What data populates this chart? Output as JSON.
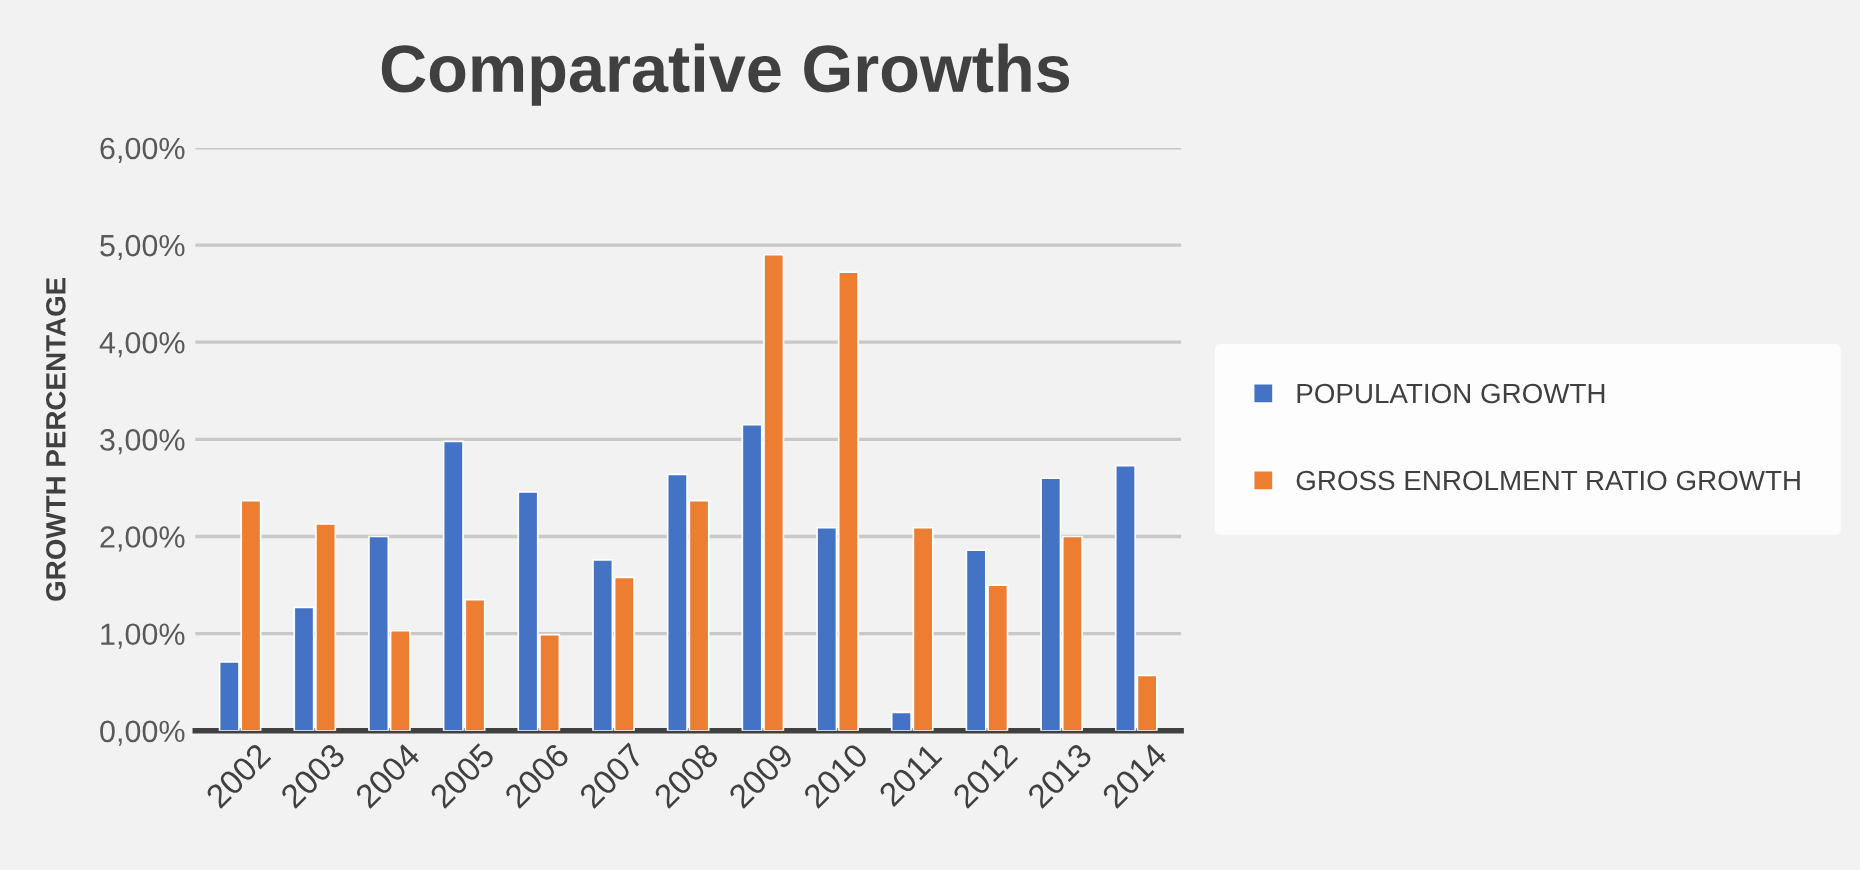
{
  "chart_data": {
    "type": "bar",
    "title": "Comparative Growths",
    "ylabel": "GROWTH PERCENTAGE",
    "categories": [
      "2002",
      "2003",
      "2004",
      "2005",
      "2006",
      "2007",
      "2008",
      "2009",
      "2010",
      "2011",
      "2012",
      "2013",
      "2014"
    ],
    "series": [
      {
        "name": "POPULATION GROWTH",
        "color": "#4472c4",
        "values": [
          0.71,
          1.27,
          2.0,
          2.98,
          2.46,
          1.76,
          2.64,
          3.15,
          2.09,
          0.19,
          1.86,
          2.6,
          2.73
        ]
      },
      {
        "name": "GROSS ENROLMENT RATIO GROWTH",
        "color": "#ed7d31",
        "values": [
          2.37,
          2.13,
          1.03,
          1.35,
          0.99,
          1.58,
          2.37,
          4.9,
          4.72,
          2.09,
          1.5,
          2.0,
          0.57
        ]
      }
    ],
    "ylim": [
      0,
      6
    ],
    "yticks": [
      {
        "value": 0,
        "label": "0,00%"
      },
      {
        "value": 1,
        "label": "1,00%"
      },
      {
        "value": 2,
        "label": "2,00%"
      },
      {
        "value": 3,
        "label": "3,00%"
      },
      {
        "value": 4,
        "label": "4,00%"
      },
      {
        "value": 5,
        "label": "5,00%"
      },
      {
        "value": 6,
        "label": "6,00%"
      }
    ],
    "grid": "y",
    "legend": "right"
  }
}
